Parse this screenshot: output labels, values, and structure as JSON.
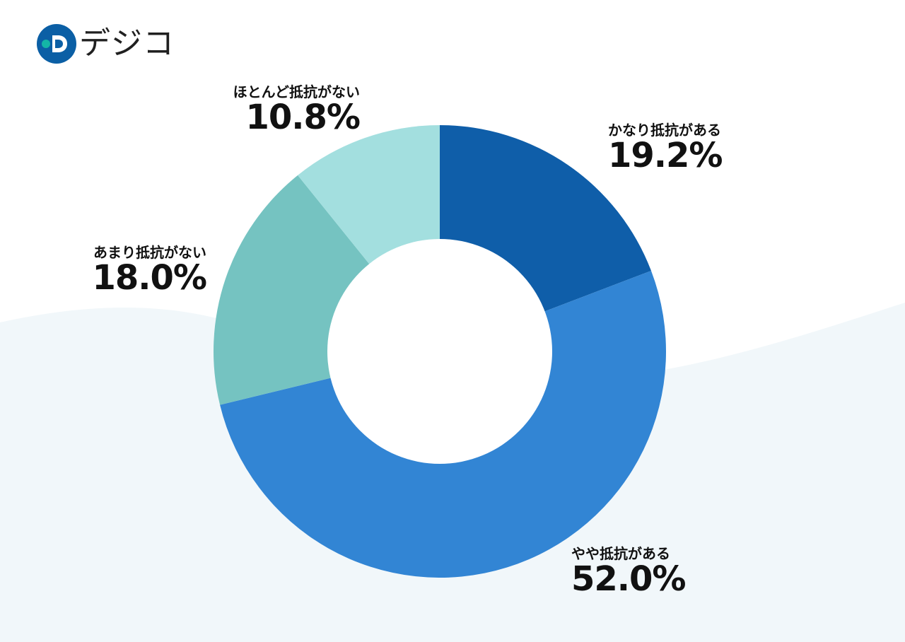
{
  "logo": {
    "text": "デジコ",
    "icon": "d-logo-icon",
    "colors": {
      "primary": "#0b5fa5",
      "secondary": "#14b5a6"
    }
  },
  "chart_data": {
    "type": "pie",
    "variant": "donut",
    "title": "",
    "categories": [
      "かなり抵抗がある",
      "やや抵抗がある",
      "あまり抵抗がない",
      "ほとんど抵抗がない"
    ],
    "values": [
      19.2,
      52.0,
      18.0,
      10.8
    ],
    "value_labels": [
      "19.2%",
      "52.0%",
      "18.0%",
      "10.8%"
    ],
    "colors": [
      "#0f5ea9",
      "#3285d4",
      "#75c3c1",
      "#a3dfdf"
    ],
    "legend": "none",
    "start_angle": "12 o'clock",
    "direction": "clockwise"
  },
  "background": {
    "wave_color": "#f1f7fa"
  }
}
